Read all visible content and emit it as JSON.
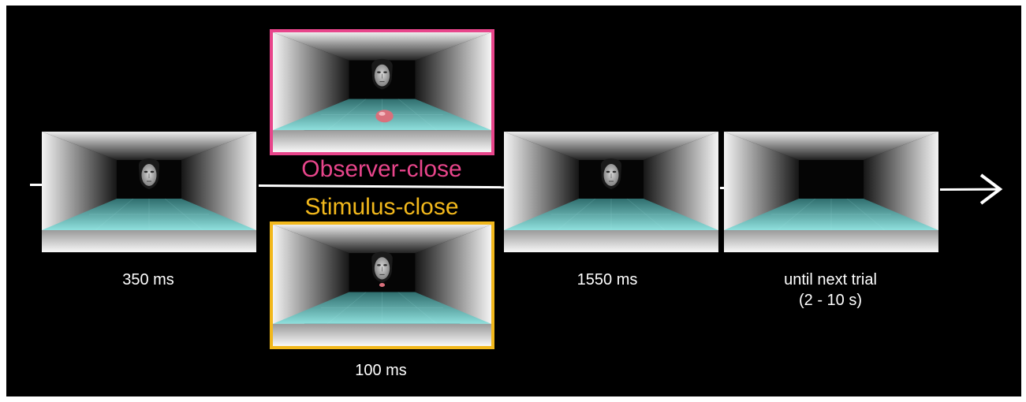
{
  "conditions": {
    "observer_close": {
      "label": "Observer-close",
      "color": "#e8458b"
    },
    "stimulus_close": {
      "label": "Stimulus-close",
      "color": "#f2b81c"
    }
  },
  "durations": {
    "first": "350 ms",
    "second": "100 ms",
    "third": "1550 ms",
    "fourth_line1": "until next trial",
    "fourth_line2": "(2 - 10 s)"
  },
  "colors": {
    "background": "#000000",
    "floor": "#7fd6d4",
    "timeline": "#ffffff"
  }
}
